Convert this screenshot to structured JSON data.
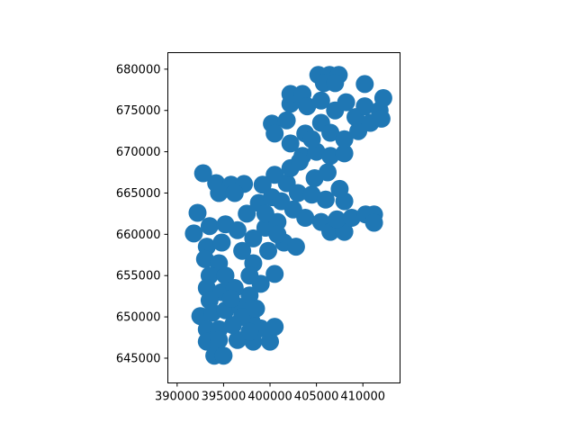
{
  "chart_data": {
    "type": "scatter",
    "title": "",
    "xlabel": "",
    "ylabel": "",
    "xlim": [
      389000,
      414000
    ],
    "ylim": [
      642000,
      682000
    ],
    "grid": false,
    "marker_color": "#1f77b4",
    "x_ticks": [
      390000,
      395000,
      400000,
      405000,
      410000
    ],
    "x_tick_labels": [
      "390000",
      "395000",
      "400000",
      "405000",
      "410000"
    ],
    "y_ticks": [
      645000,
      650000,
      655000,
      660000,
      665000,
      670000,
      675000,
      680000
    ],
    "y_tick_labels": [
      "645000",
      "650000",
      "655000",
      "660000",
      "665000",
      "670000",
      "675000",
      "680000"
    ],
    "series": [
      {
        "points": [
          [
            392200,
            662600
          ],
          [
            391800,
            660100
          ],
          [
            392800,
            667400
          ],
          [
            394200,
            666200
          ],
          [
            395800,
            666000
          ],
          [
            397200,
            666100
          ],
          [
            394500,
            665000
          ],
          [
            396200,
            665000
          ],
          [
            393500,
            661000
          ],
          [
            395200,
            661200
          ],
          [
            393200,
            658500
          ],
          [
            394800,
            659000
          ],
          [
            396500,
            660500
          ],
          [
            393000,
            657000
          ],
          [
            394500,
            656500
          ],
          [
            393500,
            655000
          ],
          [
            395200,
            655000
          ],
          [
            393200,
            653500
          ],
          [
            394800,
            653000
          ],
          [
            393500,
            652000
          ],
          [
            392500,
            650100
          ],
          [
            393800,
            650500
          ],
          [
            395200,
            650800
          ],
          [
            393200,
            648500
          ],
          [
            394500,
            648500
          ],
          [
            393200,
            647000
          ],
          [
            394500,
            647200
          ],
          [
            394000,
            645300
          ],
          [
            395000,
            645300
          ],
          [
            396500,
            647200
          ],
          [
            398200,
            647000
          ],
          [
            400000,
            647000
          ],
          [
            399000,
            648600
          ],
          [
            400500,
            648800
          ],
          [
            398000,
            649500
          ],
          [
            396800,
            651200
          ],
          [
            397800,
            652600
          ],
          [
            399000,
            654000
          ],
          [
            400500,
            655200
          ],
          [
            398200,
            656500
          ],
          [
            397000,
            658000
          ],
          [
            398200,
            659500
          ],
          [
            399500,
            660800
          ],
          [
            400800,
            661500
          ],
          [
            401500,
            659000
          ],
          [
            402800,
            658500
          ],
          [
            397500,
            662500
          ],
          [
            398800,
            663800
          ],
          [
            400200,
            664500
          ],
          [
            399200,
            666000
          ],
          [
            400500,
            667200
          ],
          [
            401800,
            666200
          ],
          [
            403000,
            665000
          ],
          [
            404500,
            664800
          ],
          [
            406000,
            664200
          ],
          [
            408000,
            664000
          ],
          [
            407500,
            665500
          ],
          [
            402500,
            663000
          ],
          [
            403800,
            662000
          ],
          [
            405500,
            661500
          ],
          [
            406500,
            660300
          ],
          [
            408000,
            660300
          ],
          [
            407200,
            661800
          ],
          [
            408800,
            662000
          ],
          [
            410300,
            662400
          ],
          [
            411200,
            662400
          ],
          [
            411200,
            661400
          ],
          [
            402200,
            668000
          ],
          [
            403500,
            669500
          ],
          [
            405000,
            670000
          ],
          [
            406500,
            669500
          ],
          [
            408000,
            669800
          ],
          [
            402200,
            671000
          ],
          [
            403800,
            672200
          ],
          [
            400200,
            673400
          ],
          [
            400500,
            672200
          ],
          [
            401800,
            673800
          ],
          [
            402200,
            675800
          ],
          [
            402200,
            677000
          ],
          [
            403500,
            677000
          ],
          [
            404000,
            675500
          ],
          [
            405500,
            676200
          ],
          [
            407000,
            675000
          ],
          [
            405500,
            673500
          ],
          [
            406500,
            672300
          ],
          [
            408000,
            671500
          ],
          [
            409500,
            672500
          ],
          [
            410800,
            673500
          ],
          [
            409200,
            674200
          ],
          [
            410200,
            675500
          ],
          [
            411800,
            675000
          ],
          [
            412200,
            676500
          ],
          [
            412000,
            674000
          ],
          [
            410200,
            678200
          ],
          [
            405200,
            679300
          ],
          [
            406400,
            679300
          ],
          [
            407400,
            679300
          ],
          [
            405800,
            678300
          ],
          [
            407000,
            678300
          ],
          [
            408200,
            676000
          ],
          [
            404500,
            671500
          ],
          [
            403200,
            668800
          ],
          [
            404800,
            666800
          ],
          [
            406200,
            667500
          ],
          [
            401200,
            664000
          ],
          [
            399500,
            662500
          ],
          [
            400800,
            660000
          ],
          [
            399800,
            658000
          ],
          [
            397800,
            655000
          ],
          [
            396200,
            653500
          ],
          [
            395800,
            652200
          ],
          [
            397000,
            650000
          ],
          [
            398500,
            651000
          ],
          [
            396000,
            649000
          ],
          [
            397800,
            648200
          ]
        ]
      }
    ]
  }
}
